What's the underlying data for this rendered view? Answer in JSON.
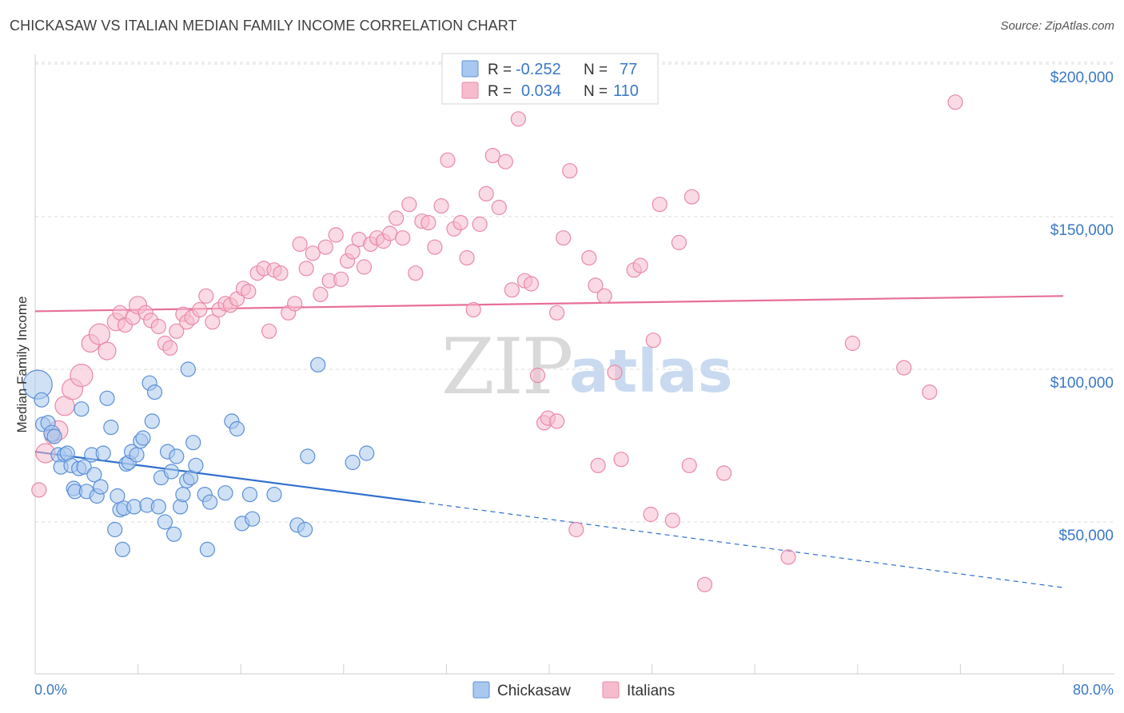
{
  "title": "CHICKASAW VS ITALIAN MEDIAN FAMILY INCOME CORRELATION CHART",
  "source": "Source: ZipAtlas.com",
  "watermark": {
    "zip": "ZIP",
    "atlas": "atlas"
  },
  "colors": {
    "blue_fill": "#a9c8ef",
    "blue_stroke": "#5b8fd6",
    "blue_line": "#2f6fce",
    "pink_fill": "#f6bccd",
    "pink_stroke": "#e88aa8",
    "pink_line": "#e86f97",
    "grid": "#dddddd",
    "axis_text": "#3a78c7"
  },
  "legend": {
    "rows": [
      {
        "r_label": "R =",
        "r_value": "-0.252",
        "n_label": "N =",
        "n_value": "77"
      },
      {
        "r_label": "R =",
        "r_value": "0.034",
        "n_label": "N =",
        "n_value": "110"
      }
    ]
  },
  "bottom_legend": [
    "Chickasaw",
    "Italians"
  ],
  "chart_data": {
    "type": "scatter",
    "title": "CHICKASAW VS ITALIAN MEDIAN FAMILY INCOME CORRELATION CHART",
    "xlabel": "",
    "ylabel": "Median Family Income",
    "xlim": [
      0,
      80
    ],
    "ylim": [
      0,
      210000
    ],
    "x_tick_labels": [
      "0.0%",
      "80.0%"
    ],
    "y_ticks": [
      50000,
      100000,
      150000,
      200000
    ],
    "y_tick_labels": [
      "$50,000",
      "$100,000",
      "$150,000",
      "$200,000"
    ],
    "series": [
      {
        "name": "Chickasaw",
        "r": -0.252,
        "n": 77,
        "trend": {
          "x0": 0,
          "y0": 73000,
          "x1": 30,
          "y1": 56500,
          "dash_to_x": 80,
          "dash_to_y": 28500
        },
        "points": [
          [
            0.2,
            95000,
            18
          ],
          [
            0.5,
            90000,
            9
          ],
          [
            0.6,
            82000,
            9
          ],
          [
            1.0,
            82500,
            9
          ],
          [
            1.3,
            79000,
            10
          ],
          [
            1.5,
            78000,
            9
          ],
          [
            1.8,
            72000,
            9
          ],
          [
            2.0,
            68000,
            9
          ],
          [
            2.3,
            72000,
            9
          ],
          [
            2.5,
            72500,
            9
          ],
          [
            2.8,
            68500,
            9
          ],
          [
            3.0,
            61000,
            9
          ],
          [
            3.1,
            60000,
            9
          ],
          [
            3.4,
            67500,
            9
          ],
          [
            3.6,
            87000,
            9
          ],
          [
            3.8,
            68000,
            9
          ],
          [
            4.0,
            60000,
            9
          ],
          [
            4.4,
            72000,
            9
          ],
          [
            4.6,
            65500,
            9
          ],
          [
            4.8,
            58500,
            9
          ],
          [
            5.1,
            61500,
            9
          ],
          [
            5.3,
            72500,
            9
          ],
          [
            5.6,
            90500,
            9
          ],
          [
            5.9,
            81000,
            9
          ],
          [
            6.2,
            47500,
            9
          ],
          [
            6.4,
            58500,
            9
          ],
          [
            6.6,
            54000,
            9
          ],
          [
            6.8,
            41000,
            9
          ],
          [
            6.9,
            54500,
            9
          ],
          [
            7.1,
            69000,
            9
          ],
          [
            7.3,
            69500,
            9
          ],
          [
            7.5,
            73000,
            9
          ],
          [
            7.7,
            55000,
            9
          ],
          [
            7.9,
            72000,
            9
          ],
          [
            8.2,
            76500,
            9
          ],
          [
            8.4,
            77500,
            9
          ],
          [
            8.7,
            55500,
            9
          ],
          [
            8.9,
            95500,
            9
          ],
          [
            9.1,
            83000,
            9
          ],
          [
            9.3,
            92500,
            9
          ],
          [
            9.6,
            55000,
            9
          ],
          [
            9.8,
            64500,
            9
          ],
          [
            10.1,
            50000,
            9
          ],
          [
            10.3,
            73000,
            9
          ],
          [
            10.6,
            66500,
            9
          ],
          [
            10.8,
            46000,
            9
          ],
          [
            11.0,
            71500,
            9
          ],
          [
            11.3,
            55000,
            9
          ],
          [
            11.5,
            59000,
            9
          ],
          [
            11.8,
            63500,
            9
          ],
          [
            11.9,
            100000,
            9
          ],
          [
            12.1,
            64500,
            9
          ],
          [
            12.3,
            76000,
            9
          ],
          [
            12.5,
            68500,
            9
          ],
          [
            13.2,
            59000,
            9
          ],
          [
            13.4,
            41000,
            9
          ],
          [
            13.6,
            56500,
            9
          ],
          [
            14.8,
            59500,
            9
          ],
          [
            15.3,
            83000,
            9
          ],
          [
            15.7,
            80500,
            9
          ],
          [
            16.1,
            49500,
            9
          ],
          [
            16.9,
            51000,
            9
          ],
          [
            16.7,
            59000,
            9
          ],
          [
            18.6,
            59000,
            9
          ],
          [
            20.4,
            49000,
            9
          ],
          [
            21.0,
            47500,
            9
          ],
          [
            21.2,
            71500,
            9
          ],
          [
            22.0,
            101500,
            9
          ],
          [
            24.7,
            69500,
            9
          ],
          [
            25.8,
            72500,
            9
          ]
        ]
      },
      {
        "name": "Italians",
        "r": 0.034,
        "n": 110,
        "trend": {
          "x0": 0,
          "y0": 119000,
          "x1": 80,
          "y1": 124000
        },
        "points": [
          [
            0.3,
            60500,
            9
          ],
          [
            0.8,
            72500,
            12
          ],
          [
            1.3,
            78000,
            9
          ],
          [
            1.8,
            80000,
            12
          ],
          [
            2.3,
            88000,
            12
          ],
          [
            2.9,
            93500,
            13
          ],
          [
            3.6,
            98000,
            14
          ],
          [
            4.3,
            108500,
            11
          ],
          [
            5.0,
            111500,
            13
          ],
          [
            5.6,
            106000,
            11
          ],
          [
            6.3,
            115500,
            11
          ],
          [
            6.6,
            118500,
            9
          ],
          [
            7.0,
            114500,
            9
          ],
          [
            7.6,
            117000,
            9
          ],
          [
            8.0,
            121000,
            11
          ],
          [
            8.6,
            118500,
            9
          ],
          [
            9.0,
            116000,
            9
          ],
          [
            9.6,
            114000,
            9
          ],
          [
            10.1,
            108500,
            9
          ],
          [
            10.5,
            107000,
            9
          ],
          [
            11.0,
            112500,
            9
          ],
          [
            11.5,
            118000,
            9
          ],
          [
            11.8,
            115500,
            9
          ],
          [
            12.2,
            117000,
            9
          ],
          [
            12.8,
            119500,
            9
          ],
          [
            13.3,
            124000,
            9
          ],
          [
            13.8,
            115500,
            9
          ],
          [
            14.3,
            119500,
            9
          ],
          [
            14.8,
            121500,
            9
          ],
          [
            15.2,
            121000,
            9
          ],
          [
            15.7,
            123000,
            9
          ],
          [
            16.2,
            126500,
            9
          ],
          [
            16.6,
            125500,
            9
          ],
          [
            17.3,
            131500,
            9
          ],
          [
            17.8,
            133000,
            9
          ],
          [
            18.2,
            112500,
            9
          ],
          [
            18.6,
            132500,
            9
          ],
          [
            19.1,
            131500,
            9
          ],
          [
            19.7,
            118500,
            9
          ],
          [
            20.2,
            121500,
            9
          ],
          [
            20.6,
            141000,
            9
          ],
          [
            21.1,
            133000,
            9
          ],
          [
            21.6,
            138000,
            9
          ],
          [
            22.2,
            124500,
            9
          ],
          [
            22.6,
            140000,
            9
          ],
          [
            22.9,
            129000,
            9
          ],
          [
            23.4,
            144000,
            9
          ],
          [
            23.8,
            129500,
            9
          ],
          [
            24.3,
            135500,
            9
          ],
          [
            24.7,
            138500,
            9
          ],
          [
            25.2,
            142500,
            9
          ],
          [
            25.6,
            133500,
            9
          ],
          [
            26.1,
            141000,
            9
          ],
          [
            26.6,
            143000,
            9
          ],
          [
            27.1,
            142000,
            9
          ],
          [
            27.6,
            144500,
            9
          ],
          [
            28.1,
            149500,
            9
          ],
          [
            28.6,
            143000,
            9
          ],
          [
            29.1,
            154000,
            9
          ],
          [
            29.6,
            131500,
            9
          ],
          [
            30.1,
            148500,
            9
          ],
          [
            30.6,
            148000,
            9
          ],
          [
            31.1,
            140000,
            9
          ],
          [
            31.6,
            153500,
            9
          ],
          [
            32.1,
            168500,
            9
          ],
          [
            32.6,
            146000,
            9
          ],
          [
            33.1,
            148000,
            9
          ],
          [
            33.6,
            136500,
            9
          ],
          [
            34.1,
            119500,
            9
          ],
          [
            34.6,
            147500,
            9
          ],
          [
            35.1,
            157500,
            9
          ],
          [
            35.6,
            170000,
            9
          ],
          [
            36.1,
            153000,
            9
          ],
          [
            36.6,
            168000,
            9
          ],
          [
            37.1,
            126000,
            9
          ],
          [
            37.6,
            182000,
            9
          ],
          [
            38.1,
            129000,
            9
          ],
          [
            38.6,
            128000,
            9
          ],
          [
            39.1,
            98000,
            9
          ],
          [
            39.6,
            82500,
            9
          ],
          [
            39.9,
            84000,
            9
          ],
          [
            40.6,
            118500,
            9
          ],
          [
            41.1,
            143000,
            9
          ],
          [
            41.6,
            165000,
            9
          ],
          [
            42.1,
            47500,
            9
          ],
          [
            43.1,
            136500,
            9
          ],
          [
            43.6,
            127500,
            9
          ],
          [
            43.8,
            68500,
            9
          ],
          [
            44.3,
            124000,
            9
          ],
          [
            45.1,
            99000,
            9
          ],
          [
            45.6,
            70500,
            9
          ],
          [
            46.6,
            132500,
            9
          ],
          [
            47.1,
            134000,
            9
          ],
          [
            47.9,
            52500,
            9
          ],
          [
            48.1,
            109500,
            9
          ],
          [
            48.6,
            154000,
            9
          ],
          [
            49.6,
            50500,
            9
          ],
          [
            50.1,
            141500,
            9
          ],
          [
            50.9,
            68500,
            9
          ],
          [
            51.1,
            156500,
            9
          ],
          [
            52.1,
            29500,
            9
          ],
          [
            53.6,
            66000,
            9
          ],
          [
            58.6,
            38500,
            9
          ],
          [
            63.6,
            108500,
            9
          ],
          [
            67.6,
            100500,
            9
          ],
          [
            69.6,
            92500,
            9
          ],
          [
            71.6,
            187500,
            9
          ],
          [
            40.6,
            83000,
            9
          ]
        ]
      }
    ]
  }
}
